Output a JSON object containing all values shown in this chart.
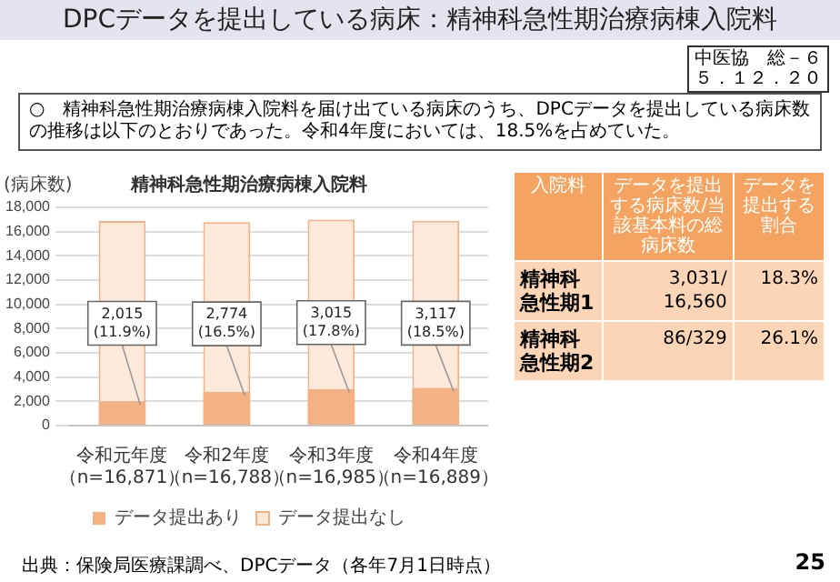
{
  "chart_data": [
    {
      "type": "other",
      "title": "DPCデータを提出している病床：精神科急性期治療病棟入院料",
      "annotations": [
        "○　精神科急性期治療病棟入院料を届け出ている病床のうち、DPCデータを提出している病床数の推移は以下のとおりであった。令和4年度においては、18.5%を占めていた。",
        "中医協　総－６",
        "５．１２．２０",
        "出典：保険局医療課調べ、DPCデータ（各年7月1日時点）",
        "25"
      ]
    },
    {
      "type": "bar",
      "stacked": true,
      "title": "精神科急性期治療病棟入院料",
      "ylabel": "(病床数)",
      "categories": [
        "令和元年度（n=16,871）",
        "令和2年度（n=16,788）",
        "令和3年度（n=16,985）",
        "令和4年度（n=16,889）"
      ],
      "series": [
        {
          "name": "データ提出あり",
          "color": "#f4b183",
          "values": [
            2015,
            2774,
            3015,
            3117
          ],
          "value_labels": [
            "2,015 (11.9%)",
            "2,774 (16.5%)",
            "3,015 (17.8%)",
            "3,117 (18.5%)"
          ]
        },
        {
          "name": "データ提出なし",
          "color": "#fde9d9",
          "values": [
            14856,
            14014,
            13970,
            13772
          ]
        }
      ],
      "ylim": [
        0,
        18000
      ],
      "yticks": [
        0,
        {
          "value": 2000,
          "label": "2,000"
        },
        {
          "value": 4000,
          "label": "4,000"
        },
        {
          "value": 6000,
          "label": "6,000"
        },
        {
          "value": 8000,
          "label": "8,000"
        },
        {
          "value": 10000,
          "label": "10,000"
        },
        {
          "value": 12000,
          "label": "12,000"
        },
        {
          "value": 14000,
          "label": "14,000"
        },
        {
          "value": 16000,
          "label": "16,000"
        },
        {
          "value": 18000,
          "label": "18,000"
        }
      ],
      "grid": "y",
      "legend": "bottom"
    },
    {
      "type": "other",
      "legend_title": "入院料",
      "categories": [
        "精神科急性期1",
        "精神科急性期2"
      ],
      "series": [
        {
          "name": "データを提出する病床数/当該基本料の総病床数",
          "values": [
            null,
            null
          ],
          "value_labels": [
            "3,031/16,560",
            "86/329"
          ]
        },
        {
          "name": "データを提出する割合",
          "values": [
            null,
            null
          ],
          "value_labels": [
            "18.3%",
            "26.1%"
          ]
        }
      ]
    }
  ]
}
